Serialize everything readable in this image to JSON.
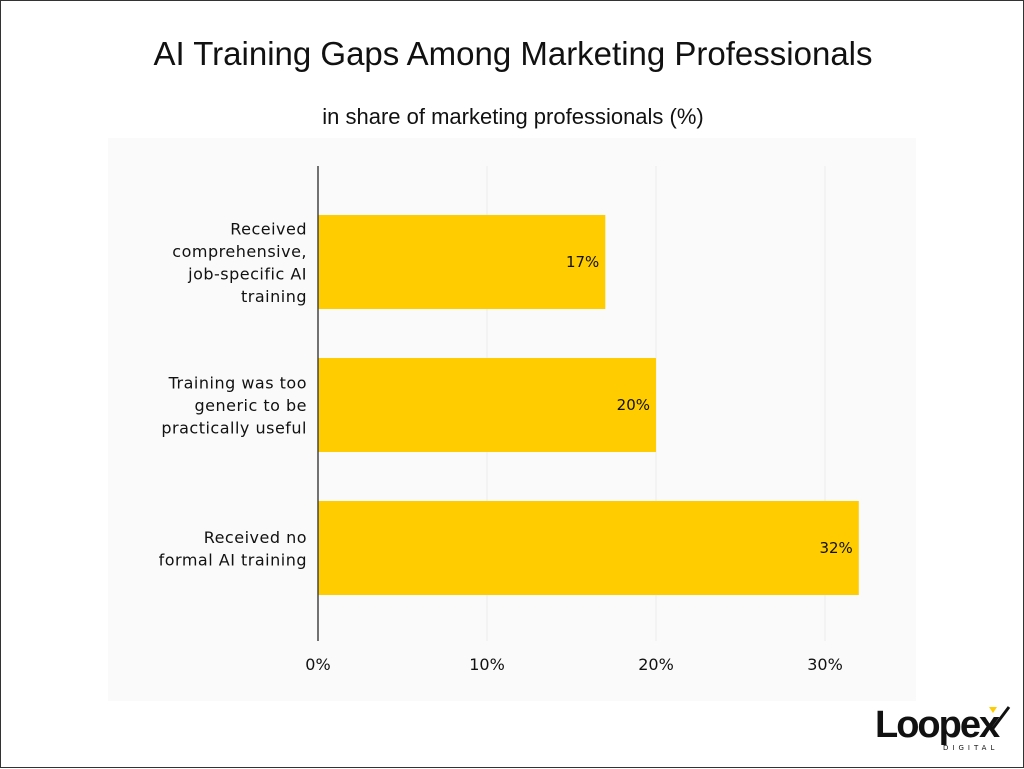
{
  "title": "AI Training Gaps Among Marketing Professionals",
  "subtitle": "in share of marketing professionals (%)",
  "chart_data": {
    "type": "bar",
    "orientation": "horizontal",
    "categories": [
      [
        "Received",
        "comprehensive,",
        "job-specific AI",
        "training"
      ],
      [
        "Training was too",
        "generic to be",
        "practically useful"
      ],
      [
        "Received no",
        "formal AI training"
      ]
    ],
    "values": [
      17,
      20,
      32
    ],
    "value_labels": [
      "17%",
      "20%",
      "32%"
    ],
    "xlim": [
      0,
      32
    ],
    "xticks": [
      0,
      10,
      20,
      30
    ],
    "xtick_labels": [
      "0%",
      "10%",
      "20%",
      "30%"
    ],
    "grid": true,
    "bar_color": "#FFCC00"
  },
  "logo": {
    "text": "Loopex",
    "subtext": "DIGITAL",
    "accent": "#FFCC00"
  }
}
